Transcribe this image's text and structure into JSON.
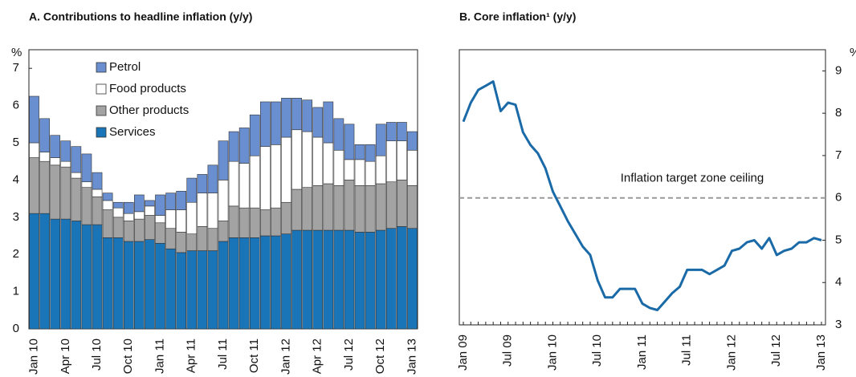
{
  "chart_data": [
    {
      "type": "stacked_bar",
      "title": "A. Contributions to headline inflation (y/y)",
      "y_label": "%",
      "categories": [
        "Jan 10",
        null,
        null,
        "Apr 10",
        null,
        null,
        "Jul 10",
        null,
        null,
        "Oct 10",
        null,
        null,
        "Jan 11",
        null,
        null,
        "Apr 11",
        null,
        null,
        "Jul 11",
        null,
        null,
        "Oct 11",
        null,
        null,
        "Jan 12",
        null,
        null,
        "Apr 12",
        null,
        null,
        "Jul 12",
        null,
        null,
        "Oct 12",
        null,
        null,
        "Jan 13"
      ],
      "series": [
        {
          "name": "Services",
          "color": "#1a75b8",
          "values": [
            3.1,
            3.1,
            2.95,
            2.95,
            2.9,
            2.8,
            2.8,
            2.45,
            2.45,
            2.35,
            2.35,
            2.4,
            2.3,
            2.15,
            2.05,
            2.1,
            2.1,
            2.1,
            2.35,
            2.45,
            2.45,
            2.45,
            2.5,
            2.5,
            2.55,
            2.65,
            2.65,
            2.65,
            2.65,
            2.65,
            2.65,
            2.6,
            2.6,
            2.65,
            2.7,
            2.75,
            2.7
          ]
        },
        {
          "name": "Other products",
          "color": "#a3a3a3",
          "values": [
            1.5,
            1.4,
            1.45,
            1.4,
            1.15,
            1.0,
            0.75,
            0.75,
            0.55,
            0.55,
            0.6,
            0.65,
            0.55,
            0.55,
            0.55,
            0.45,
            0.65,
            0.6,
            0.55,
            0.85,
            0.8,
            0.8,
            0.7,
            0.75,
            0.85,
            1.1,
            1.15,
            1.2,
            1.25,
            1.2,
            1.35,
            1.25,
            1.25,
            1.25,
            1.25,
            1.25,
            1.15
          ]
        },
        {
          "name": "Food products",
          "color": "#ffffff",
          "values": [
            0.4,
            0.25,
            0.2,
            0.15,
            0.15,
            0.15,
            0.2,
            0.25,
            0.25,
            0.2,
            0.2,
            0.25,
            0.2,
            0.5,
            0.6,
            0.85,
            0.9,
            0.95,
            1.1,
            1.2,
            1.2,
            1.4,
            1.7,
            1.7,
            1.75,
            1.6,
            1.5,
            1.3,
            1.1,
            0.95,
            0.55,
            0.7,
            0.65,
            0.75,
            1.1,
            1.05,
            0.95
          ]
        },
        {
          "name": "Petrol",
          "color": "#6a8fd0",
          "values": [
            1.25,
            0.9,
            0.6,
            0.55,
            0.7,
            0.75,
            0.45,
            0.2,
            0.15,
            0.3,
            0.45,
            0.15,
            0.55,
            0.45,
            0.5,
            0.65,
            0.5,
            0.75,
            1.05,
            0.8,
            0.95,
            1.1,
            1.2,
            1.15,
            1.05,
            0.85,
            0.85,
            0.8,
            1.1,
            0.85,
            0.95,
            0.4,
            0.45,
            0.85,
            0.5,
            0.5,
            0.5
          ]
        }
      ],
      "ylim": [
        0,
        7.5
      ],
      "yticks": [
        0,
        1,
        2,
        3,
        4,
        5,
        6,
        7
      ],
      "legend": "upper-left"
    },
    {
      "type": "line",
      "title": "B. Core inflation¹ (y/y)",
      "y_label": "%",
      "axis_side": "right",
      "categories": [
        "Jan 09",
        null,
        null,
        null,
        null,
        null,
        "Jul 09",
        null,
        null,
        null,
        null,
        null,
        "Jan 10",
        null,
        null,
        null,
        null,
        null,
        "Jul 10",
        null,
        null,
        null,
        null,
        null,
        "Jan 11",
        null,
        null,
        null,
        null,
        null,
        "Jul 11",
        null,
        null,
        null,
        null,
        null,
        "Jan 12",
        null,
        null,
        null,
        null,
        null,
        "Jul 12",
        null,
        null,
        null,
        null,
        null,
        "Jan 13"
      ],
      "series": [
        {
          "name": "Core inflation",
          "color": "#1a6aa8",
          "values": [
            7.8,
            8.25,
            8.55,
            8.65,
            8.75,
            8.05,
            8.25,
            8.2,
            7.55,
            7.25,
            7.05,
            6.7,
            6.15,
            5.8,
            5.45,
            5.15,
            4.85,
            4.65,
            4.05,
            3.65,
            3.65,
            3.85,
            3.85,
            3.85,
            3.5,
            3.4,
            3.35,
            3.55,
            3.75,
            3.9,
            4.3,
            4.3,
            4.3,
            4.2,
            4.3,
            4.4,
            4.75,
            4.8,
            4.95,
            5.0,
            4.8,
            5.05,
            4.65,
            4.75,
            4.8,
            4.95,
            4.95,
            5.05,
            5.0
          ]
        }
      ],
      "reference_line": {
        "value": 6,
        "label": "Inflation target zone ceiling",
        "color": "#999999"
      },
      "ylim": [
        3,
        9.5
      ],
      "yticks": [
        3,
        4,
        5,
        6,
        7,
        8,
        9
      ]
    }
  ]
}
